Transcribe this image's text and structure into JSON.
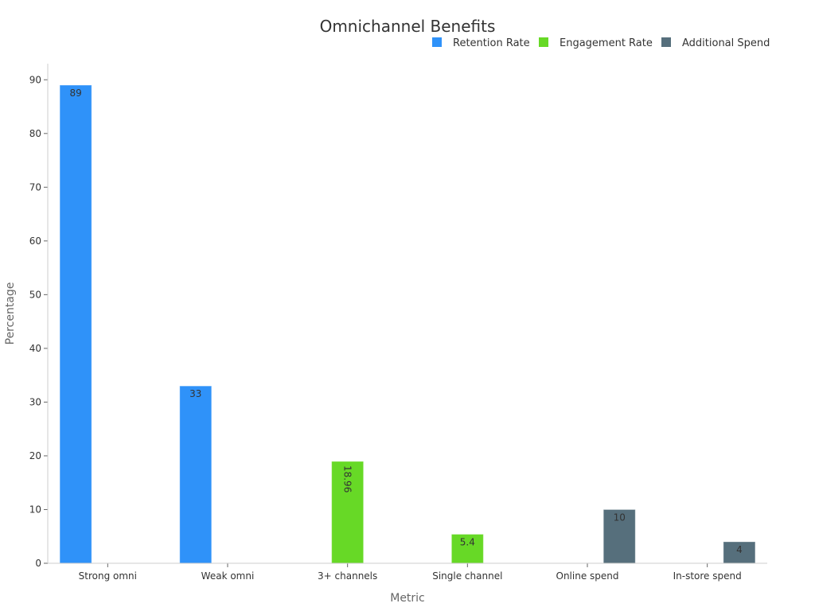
{
  "chart_data": {
    "type": "bar",
    "title": "Omnichannel Benefits",
    "xlabel": "Metric",
    "ylabel": "Percentage",
    "ylim": [
      0,
      93
    ],
    "yticks": [
      0,
      10,
      20,
      30,
      40,
      50,
      60,
      70,
      80,
      90
    ],
    "categories": [
      "Strong omni",
      "Weak omni",
      "3+ channels",
      "Single channel",
      "Online spend",
      "In-store spend"
    ],
    "legend_position": "top-right",
    "series": [
      {
        "name": "Retention Rate",
        "color": "#2f92f9",
        "values": [
          89,
          33,
          null,
          null,
          null,
          null
        ],
        "labels": [
          "89",
          "33",
          null,
          null,
          null,
          null
        ]
      },
      {
        "name": "Engagement Rate",
        "color": "#67d926",
        "values": [
          null,
          null,
          18.96,
          5.4,
          null,
          null
        ],
        "labels": [
          null,
          null,
          "18.96",
          "5.4",
          null,
          null
        ]
      },
      {
        "name": "Additional Spend",
        "color": "#566f7c",
        "values": [
          null,
          null,
          null,
          null,
          10,
          4
        ],
        "labels": [
          null,
          null,
          null,
          null,
          "10",
          "4"
        ]
      }
    ]
  }
}
